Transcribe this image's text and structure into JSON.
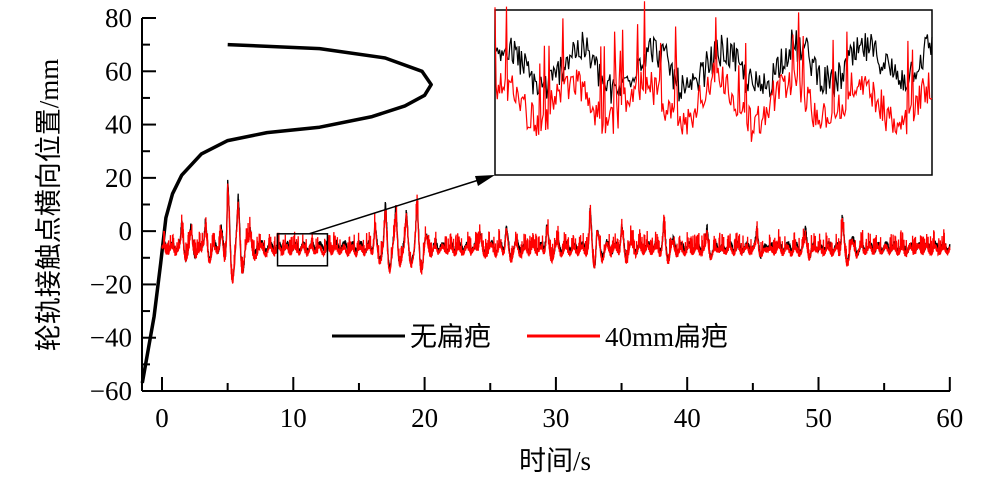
{
  "chart_data": {
    "type": "line",
    "xlabel": "时间/s",
    "ylabel": "轮轨接触点横向位置/mm",
    "xlim": [
      -1.5,
      60
    ],
    "ylim": [
      -60,
      80
    ],
    "xticks": [
      0,
      10,
      20,
      30,
      40,
      50,
      60
    ],
    "yticks": [
      -60,
      -40,
      -20,
      0,
      20,
      40,
      60,
      80
    ],
    "xtick_labels": [
      "0",
      "10",
      "20",
      "30",
      "40",
      "50",
      "60"
    ],
    "ytick_labels": [
      "−60",
      "−40",
      "−20",
      "0",
      "20",
      "40",
      "60",
      "80"
    ],
    "legend_position": "bottom-center",
    "series": [
      {
        "name": "无扁疤",
        "color": "#000000",
        "baseline": -6,
        "initial_transient": [
          [
            -1.5,
            -57
          ],
          [
            -0.6,
            -32
          ],
          [
            -0.1,
            -12
          ],
          [
            0.3,
            5
          ],
          [
            0.8,
            14
          ],
          [
            1.5,
            21
          ],
          [
            3,
            29
          ],
          [
            5,
            34
          ],
          [
            8,
            37
          ],
          [
            12,
            39
          ],
          [
            16,
            43
          ],
          [
            18.5,
            47
          ],
          [
            20,
            51
          ],
          [
            20.5,
            55
          ],
          [
            19.8,
            60
          ],
          [
            17,
            65
          ],
          [
            12,
            68.5
          ],
          [
            5,
            70
          ]
        ]
      },
      {
        "name": "40mm扁疤",
        "color": "#ff0000",
        "baseline": -7
      }
    ],
    "events": [
      [
        1.5,
        3
      ],
      [
        2.2,
        1
      ],
      [
        3.3,
        3
      ],
      [
        4.5,
        1
      ],
      [
        5.0,
        20
      ],
      [
        5.8,
        8
      ],
      [
        6.7,
        2
      ],
      [
        16.2,
        3
      ],
      [
        17.0,
        8
      ],
      [
        17.8,
        7
      ],
      [
        18.6,
        7
      ],
      [
        19.4,
        9
      ],
      [
        24.2,
        1
      ],
      [
        26.2,
        2
      ],
      [
        29.3,
        3
      ],
      [
        32.6,
        7
      ],
      [
        33.1,
        2
      ],
      [
        35.0,
        2
      ],
      [
        38.2,
        2
      ],
      [
        41.5,
        1
      ],
      [
        45.3,
        1
      ],
      [
        49.0,
        1
      ],
      [
        51.8,
        6
      ]
    ],
    "zoom_window": {
      "x": [
        8.8,
        12.6
      ],
      "y": [
        -13,
        -1
      ]
    },
    "inset": {
      "x": [
        8.8,
        12.6
      ],
      "y": [
        -12,
        -1
      ]
    }
  }
}
